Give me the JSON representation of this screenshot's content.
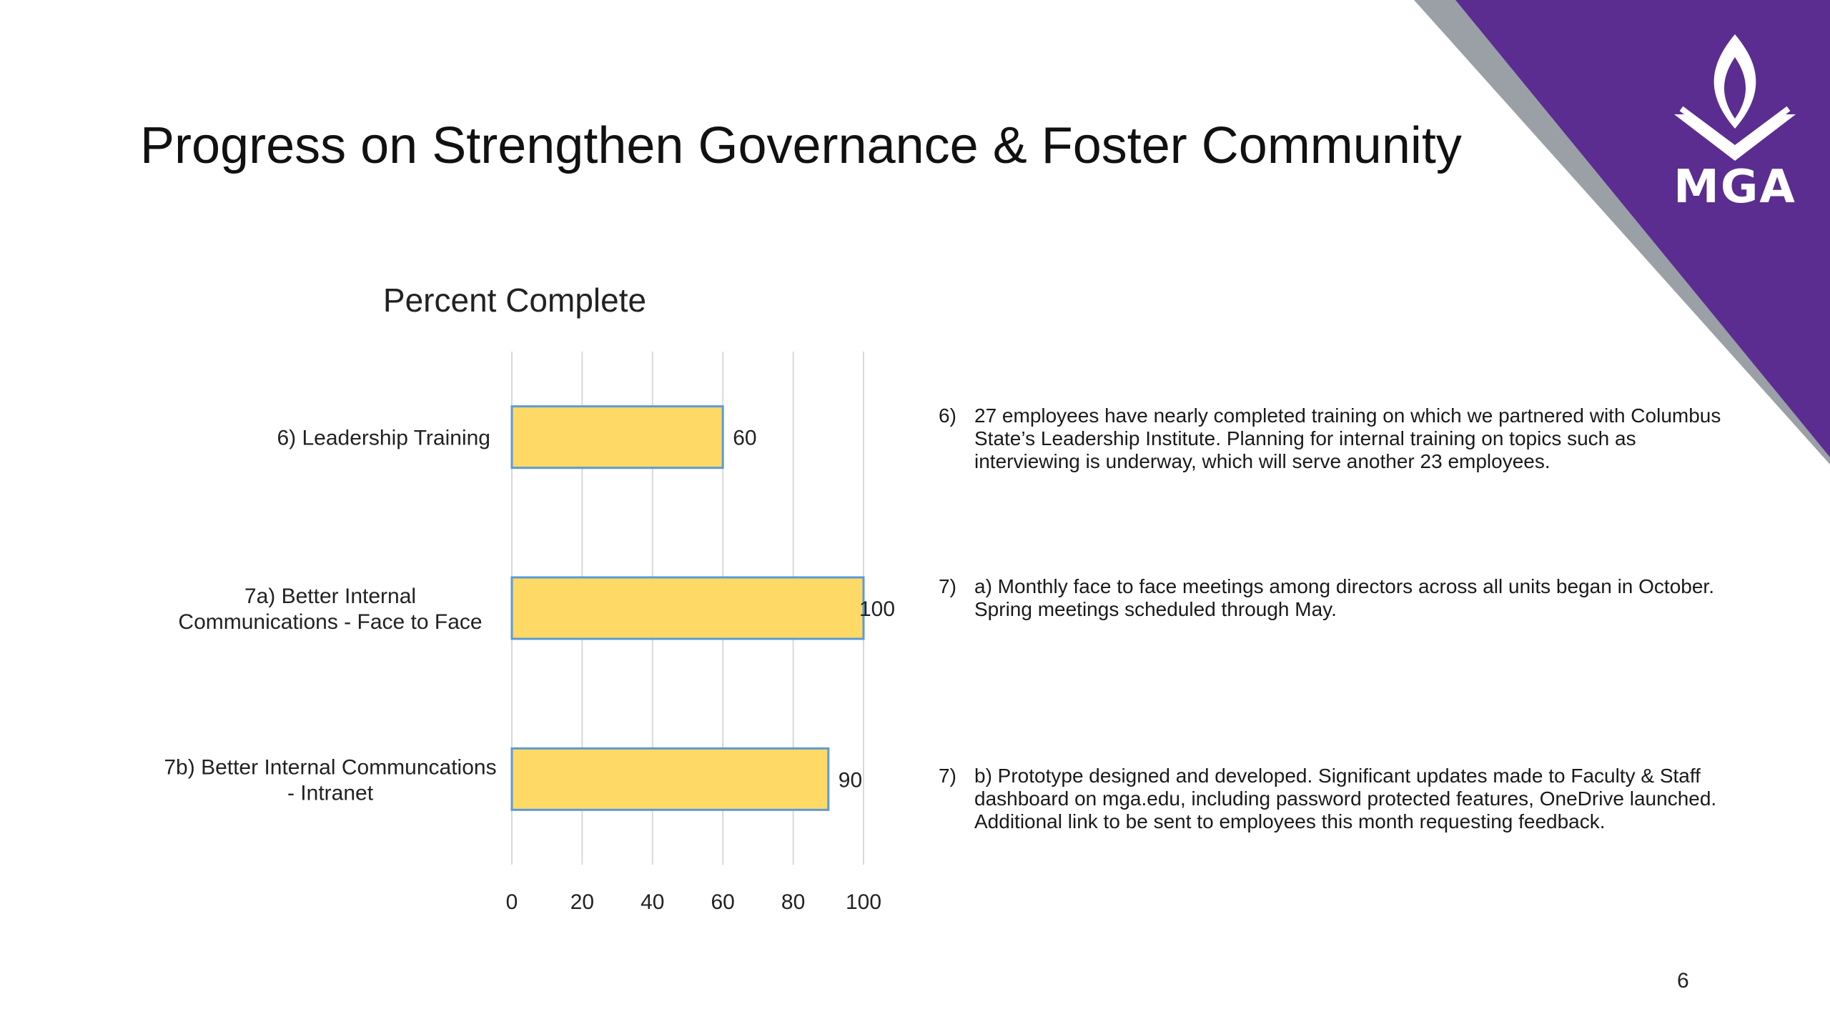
{
  "slide": {
    "title": "Progress on Strengthen Governance & Foster Community",
    "page_number": "6",
    "brand": {
      "logo_text": "MGA",
      "logo_icon": "flame-book-icon",
      "accent_color": "#5b2d90",
      "stripe_color": "#9aa0a6"
    }
  },
  "chart_data": {
    "type": "bar",
    "orientation": "horizontal",
    "title": "Percent Complete",
    "categories": [
      [
        "6) Leadership Training"
      ],
      [
        "7a) Better Internal",
        "Communications - Face to Face"
      ],
      [
        "7b) Better Internal Communcations",
        "- Intranet"
      ]
    ],
    "values": [
      60,
      100,
      90
    ],
    "xlim": [
      0,
      100
    ],
    "xticks": [
      0,
      20,
      40,
      60,
      80,
      100
    ],
    "grid": true,
    "bar_color": "#ffd966",
    "bar_edge_color": "#5b9bd5",
    "data_labels": true
  },
  "notes": [
    {
      "num": "6)",
      "text": "27 employees have nearly completed training on which we partnered with Columbus State’s Leadership Institute. Planning for internal training on topics such as interviewing is underway, which will serve another 23 employees."
    },
    {
      "num": "7)",
      "text": "a) Monthly face to face meetings among directors across all units began in October. Spring meetings scheduled through May."
    },
    {
      "num": "7)",
      "text": "b) Prototype designed and developed. Significant updates made to Faculty & Staff dashboard on mga.edu, including password protected features, OneDrive launched. Additional link to be sent to employees this month requesting feedback."
    }
  ]
}
